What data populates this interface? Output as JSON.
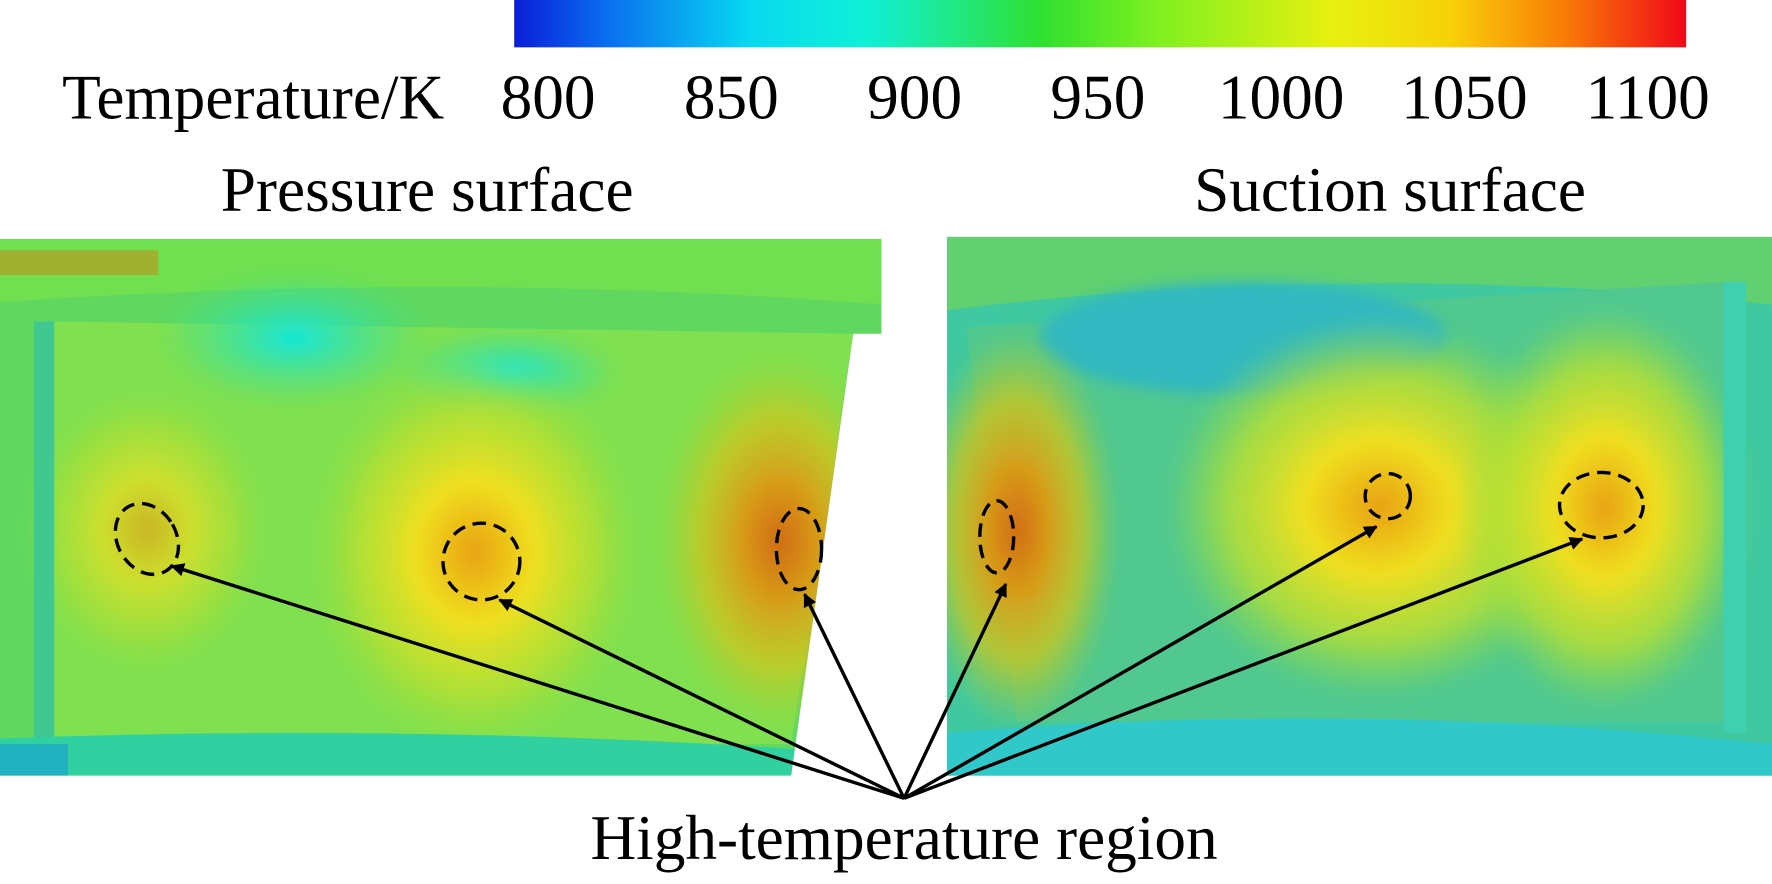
{
  "colorbar": {
    "label": "Temperature/K",
    "ticks": [
      800,
      850,
      900,
      950,
      1000,
      1050,
      1100
    ]
  },
  "panels": [
    {
      "title": "Pressure surface"
    },
    {
      "title": "Suction surface"
    }
  ],
  "annotation": {
    "label": "High-temperature region"
  }
}
